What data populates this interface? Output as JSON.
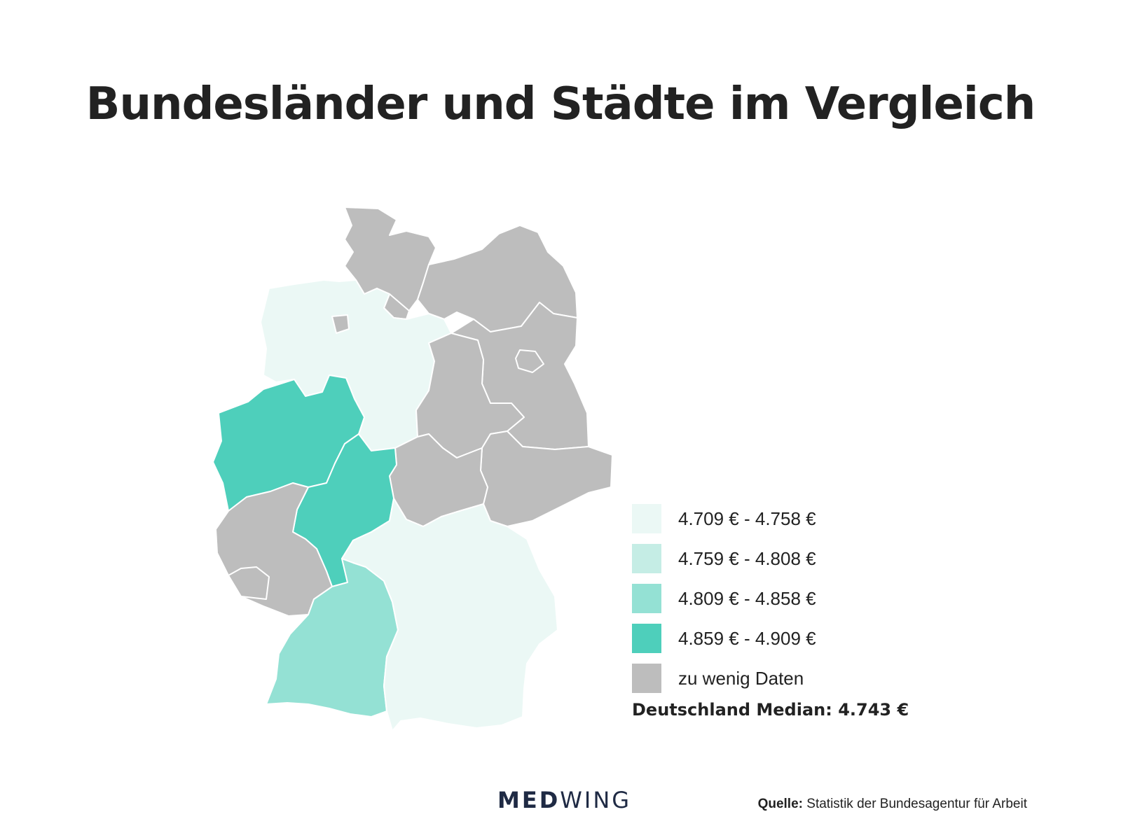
{
  "title": "Bundesländer und Städte im Vergleich",
  "colors": {
    "level_1": "#ebf8f5",
    "level_2": "#c5ede5",
    "level_3": "#94e1d4",
    "level_4": "#4ecfbb",
    "no_data": "#bdbdbd"
  },
  "legend": [
    {
      "label": "4.709 € - 4.758 €",
      "color": "#ebf8f5"
    },
    {
      "label": "4.759 € - 4.808 €",
      "color": "#c5ede5"
    },
    {
      "label": "4.809 € - 4.858 €",
      "color": "#94e1d4"
    },
    {
      "label": "4.859 € - 4.909 €",
      "color": "#4ecfbb"
    },
    {
      "label": "zu wenig Daten",
      "color": "#bdbdbd"
    }
  ],
  "median": "Deutschland Median: 4.743 €",
  "logo": {
    "part1": "MED",
    "part2": "WING"
  },
  "source": {
    "label": "Quelle:",
    "text": "Statistik der Bundesagentur für Arbeit"
  },
  "regions": [
    {
      "name": "Niedersachsen",
      "category": "level_1"
    },
    {
      "name": "Bayern",
      "category": "level_1"
    },
    {
      "name": "Baden-Württemberg",
      "category": "level_3"
    },
    {
      "name": "Nordrhein-Westfalen",
      "category": "level_4"
    },
    {
      "name": "Hessen",
      "category": "level_4"
    },
    {
      "name": "Schleswig-Holstein",
      "category": "no_data"
    },
    {
      "name": "Mecklenburg-Vorpommern",
      "category": "no_data"
    },
    {
      "name": "Brandenburg",
      "category": "no_data"
    },
    {
      "name": "Berlin",
      "category": "no_data"
    },
    {
      "name": "Sachsen-Anhalt",
      "category": "no_data"
    },
    {
      "name": "Sachsen",
      "category": "no_data"
    },
    {
      "name": "Thüringen",
      "category": "no_data"
    },
    {
      "name": "Rheinland-Pfalz",
      "category": "no_data"
    },
    {
      "name": "Saarland",
      "category": "no_data"
    },
    {
      "name": "Hamburg",
      "category": "no_data"
    },
    {
      "name": "Bremen",
      "category": "no_data"
    }
  ]
}
